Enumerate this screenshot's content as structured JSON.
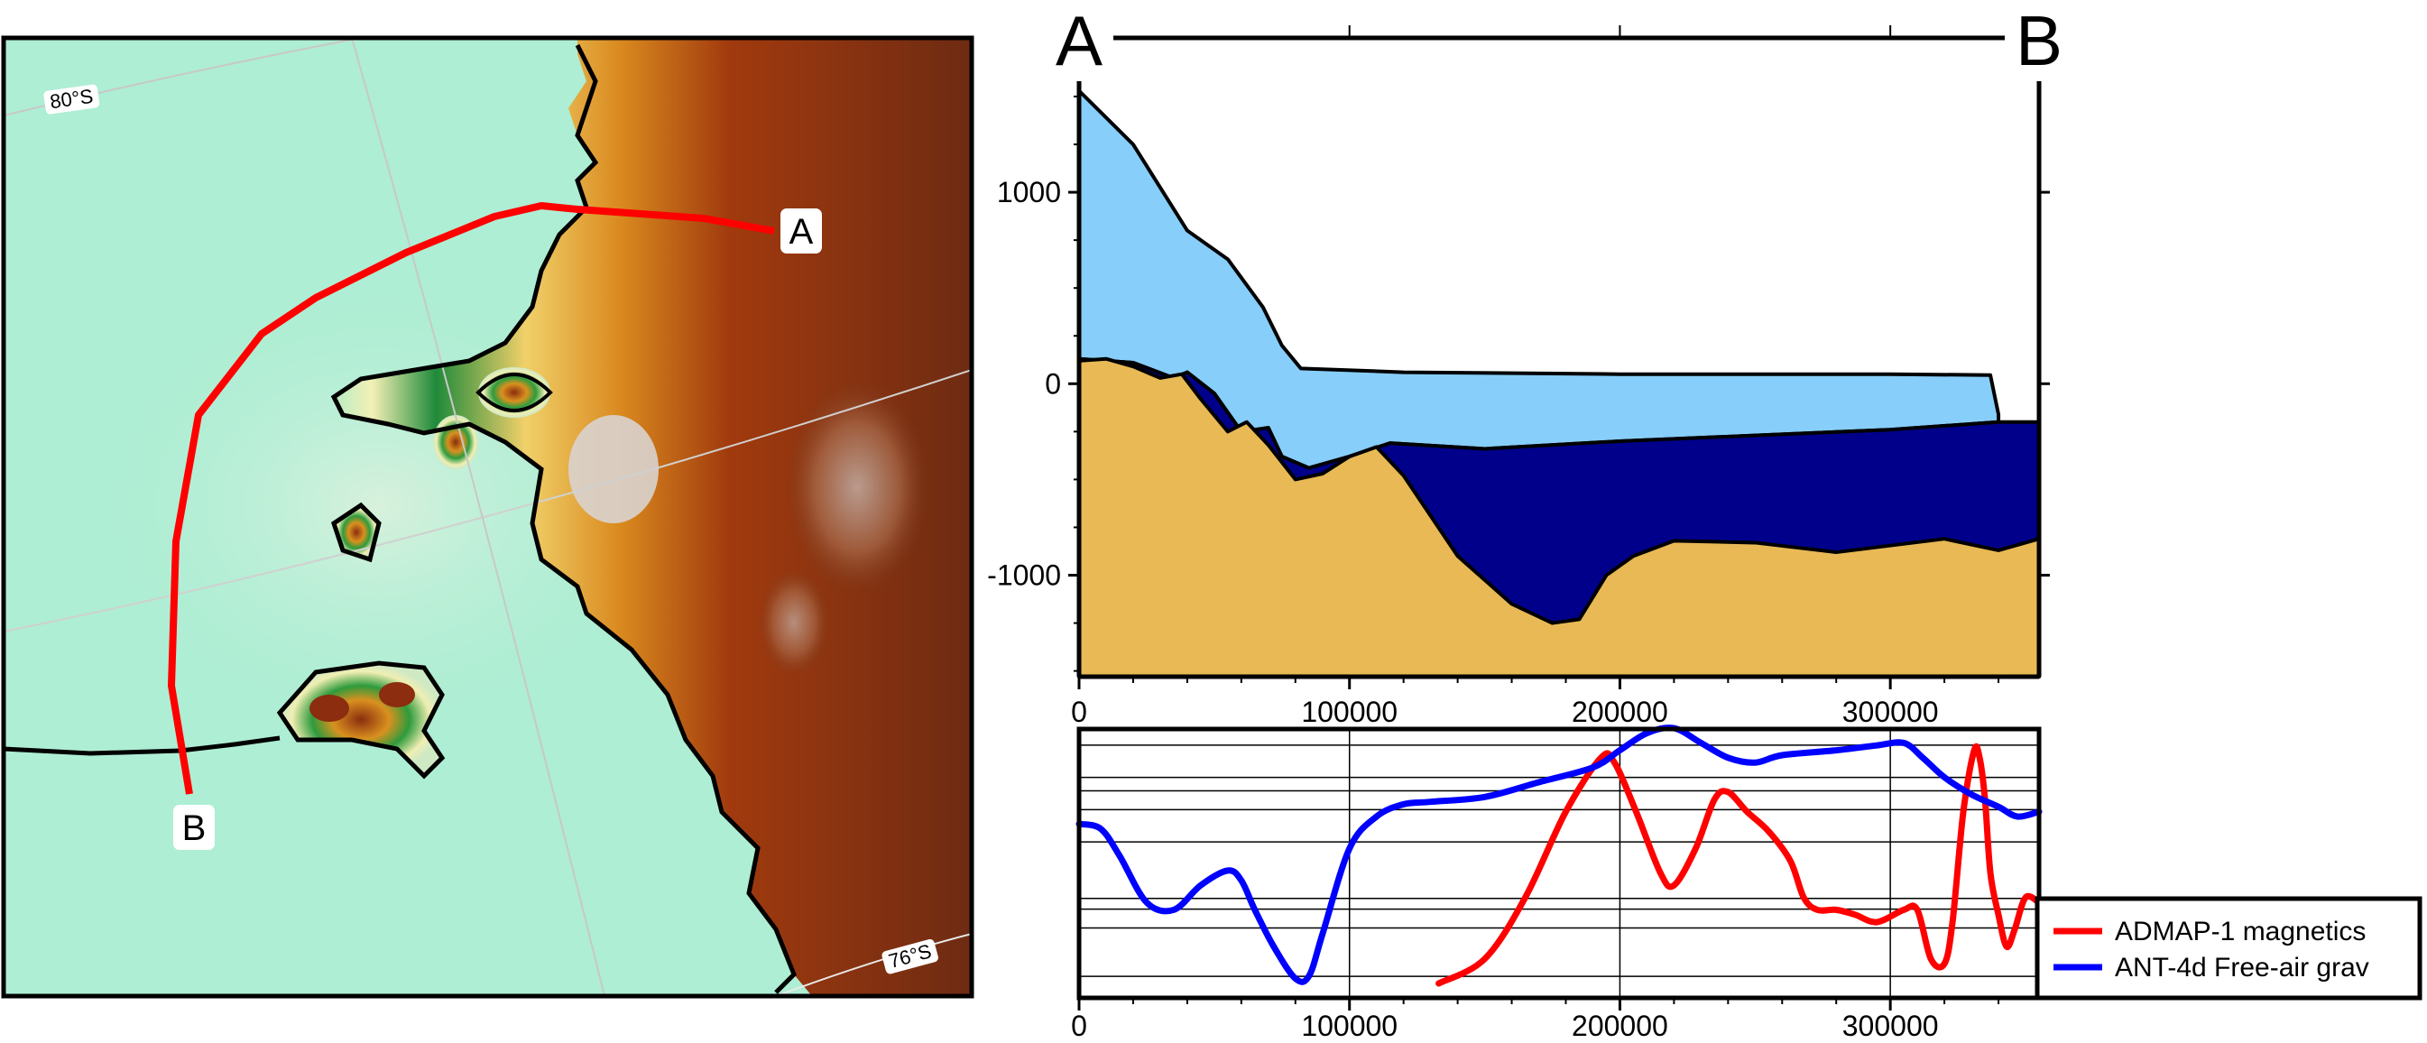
{
  "map": {
    "lat_labels": [
      "80°S",
      "76°S"
    ],
    "profile_start_label": "A",
    "profile_end_label": "B",
    "colors": {
      "ocean": "#aeeed4",
      "profile_line": "#ff0000",
      "coastline": "#000000",
      "topo_low": "#f5f0a8",
      "topo_green": "#2e9b3c",
      "topo_orange": "#e09a1e",
      "topo_brown": "#8b2e0a",
      "topo_dark": "#6b2a12"
    }
  },
  "chart_data": [
    {
      "type": "area",
      "title": "",
      "endpoints": [
        "A",
        "B"
      ],
      "xlim": [
        0,
        355000
      ],
      "ylim": [
        -1530,
        1580
      ],
      "x_ticks": [
        0,
        100000,
        200000,
        300000
      ],
      "y_ticks": [
        1000,
        0,
        -1000
      ],
      "layers": [
        {
          "name": "",
          "color": "#87cefa",
          "top_x": [
            0,
            20000,
            40000,
            55000,
            68000,
            75000,
            82000,
            120000,
            200000,
            300000,
            337000,
            340000
          ],
          "top_y": [
            1530,
            1250,
            800,
            650,
            400,
            200,
            80,
            60,
            50,
            50,
            45,
            -160
          ]
        },
        {
          "name": "",
          "color": "#00008b",
          "top_x": [
            0,
            20000,
            35000,
            40000,
            50000,
            60000,
            70000,
            75000,
            85000,
            100000,
            115000,
            150000,
            200000,
            250000,
            300000,
            340000,
            355000
          ],
          "top_y": [
            130,
            110,
            30,
            60,
            -50,
            -250,
            -230,
            -380,
            -440,
            -380,
            -310,
            -340,
            -300,
            -270,
            -240,
            -200,
            -200
          ]
        },
        {
          "name": "",
          "color": "#e8b955",
          "top_x": [
            0,
            10000,
            20000,
            30000,
            38000,
            45000,
            55000,
            62000,
            70000,
            80000,
            90000,
            100000,
            110000,
            120000,
            140000,
            160000,
            175000,
            185000,
            195000,
            205000,
            220000,
            250000,
            280000,
            320000,
            340000,
            355000
          ],
          "top_y": [
            120,
            130,
            90,
            30,
            50,
            -80,
            -250,
            -200,
            -320,
            -500,
            -470,
            -380,
            -330,
            -480,
            -900,
            -1150,
            -1250,
            -1230,
            -1000,
            -900,
            -820,
            -830,
            -880,
            -810,
            -870,
            -810
          ]
        }
      ]
    },
    {
      "type": "line",
      "title": "",
      "xlim": [
        0,
        355000
      ],
      "ylim": [
        0,
        100
      ],
      "x_ticks": [
        0,
        100000,
        200000,
        300000
      ],
      "series": [
        {
          "name": "ADMAP-1 magnetics",
          "color": "#ff0000",
          "x": [
            133000,
            150000,
            165000,
            180000,
            193000,
            198000,
            206000,
            215000,
            220000,
            228000,
            235000,
            240000,
            247000,
            255000,
            263000,
            268000,
            273000,
            280000,
            287000,
            295000,
            305000,
            310000,
            315000,
            320000,
            323000,
            327000,
            331000,
            333000,
            335000,
            337000,
            340000,
            343000,
            346000,
            350000,
            355000
          ],
          "y": [
            0,
            10,
            35,
            70,
            92,
            90,
            70,
            45,
            40,
            55,
            75,
            78,
            70,
            62,
            50,
            35,
            30,
            30,
            28,
            25,
            30,
            30,
            10,
            8,
            25,
            70,
            95,
            92,
            75,
            45,
            28,
            15,
            22,
            35,
            33
          ]
        },
        {
          "name": "ANT-4d Free-air grav",
          "color": "#0000ff",
          "x": [
            0,
            8000,
            15000,
            25000,
            35000,
            45000,
            55000,
            60000,
            65000,
            72000,
            80000,
            85000,
            90000,
            100000,
            110000,
            120000,
            130000,
            150000,
            170000,
            190000,
            200000,
            210000,
            220000,
            230000,
            240000,
            250000,
            260000,
            280000,
            295000,
            305000,
            312000,
            320000,
            330000,
            340000,
            347000,
            355000
          ],
          "y": [
            65,
            63,
            52,
            33,
            30,
            40,
            46,
            42,
            30,
            15,
            2,
            3,
            20,
            55,
            68,
            73,
            74,
            76,
            82,
            88,
            95,
            102,
            104,
            98,
            92,
            90,
            93,
            95,
            97,
            98,
            92,
            84,
            77,
            72,
            68,
            70
          ]
        }
      ]
    }
  ]
}
